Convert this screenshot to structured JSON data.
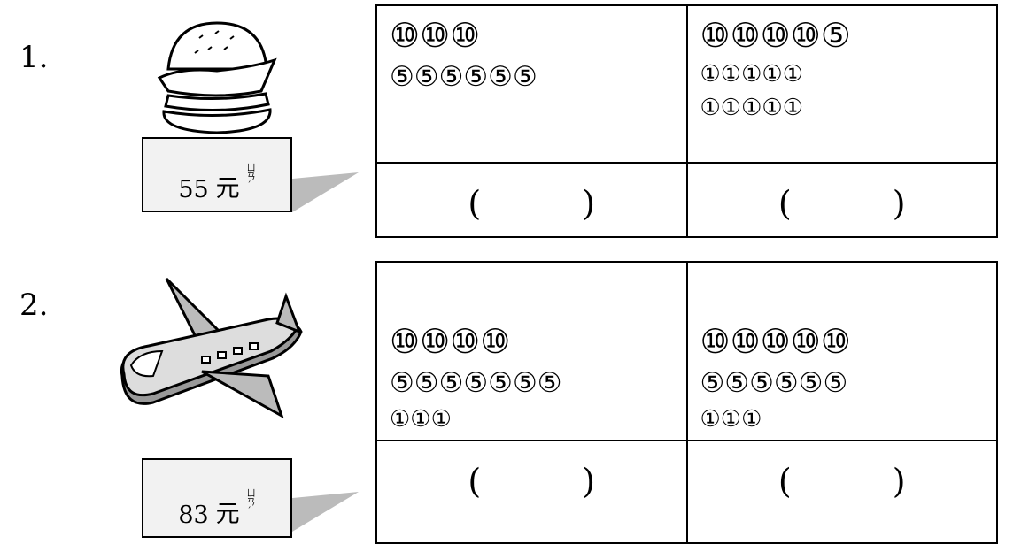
{
  "problems": [
    {
      "number": "1.",
      "price": "55",
      "unit": "元",
      "unit_phonetic": "ㄩㄢˊ",
      "options": [
        {
          "coins": [
            "⑩⑩⑩",
            "⑤⑤⑤⑤⑤⑤"
          ],
          "answer": "(　　　)"
        },
        {
          "coins": [
            "⑩⑩⑩⑩⑤",
            "①①①①①",
            "①①①①①"
          ],
          "answer": "(　　　)"
        }
      ]
    },
    {
      "number": "2.",
      "price": "83",
      "unit": "元",
      "unit_phonetic": "ㄩㄢˊ",
      "options": [
        {
          "coins": [
            "⑩⑩⑩⑩",
            "⑤⑤⑤⑤⑤⑤⑤",
            "①①①"
          ],
          "answer": "(　　　)"
        },
        {
          "coins": [
            "⑩⑩⑩⑩⑩",
            "⑤⑤⑤⑤⑤⑤",
            "①①①"
          ],
          "answer": "(　　　)"
        }
      ]
    }
  ]
}
